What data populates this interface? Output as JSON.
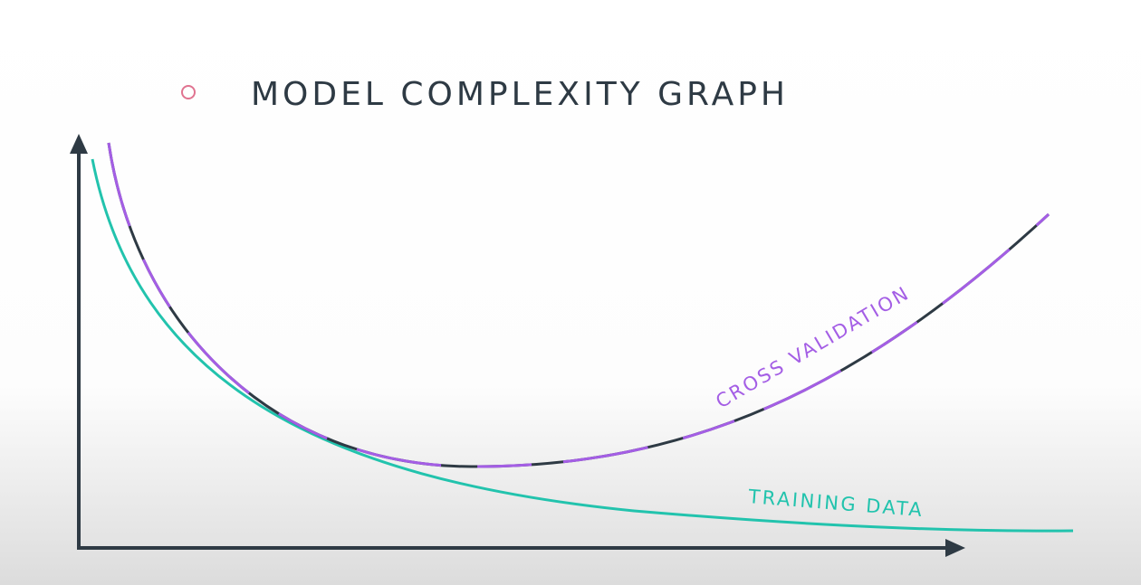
{
  "title": "MODEL COMPLEXITY GRAPH",
  "curves": [
    {
      "label": "CROSS VALIDATION"
    },
    {
      "label": "TRAINING DATA"
    }
  ]
}
